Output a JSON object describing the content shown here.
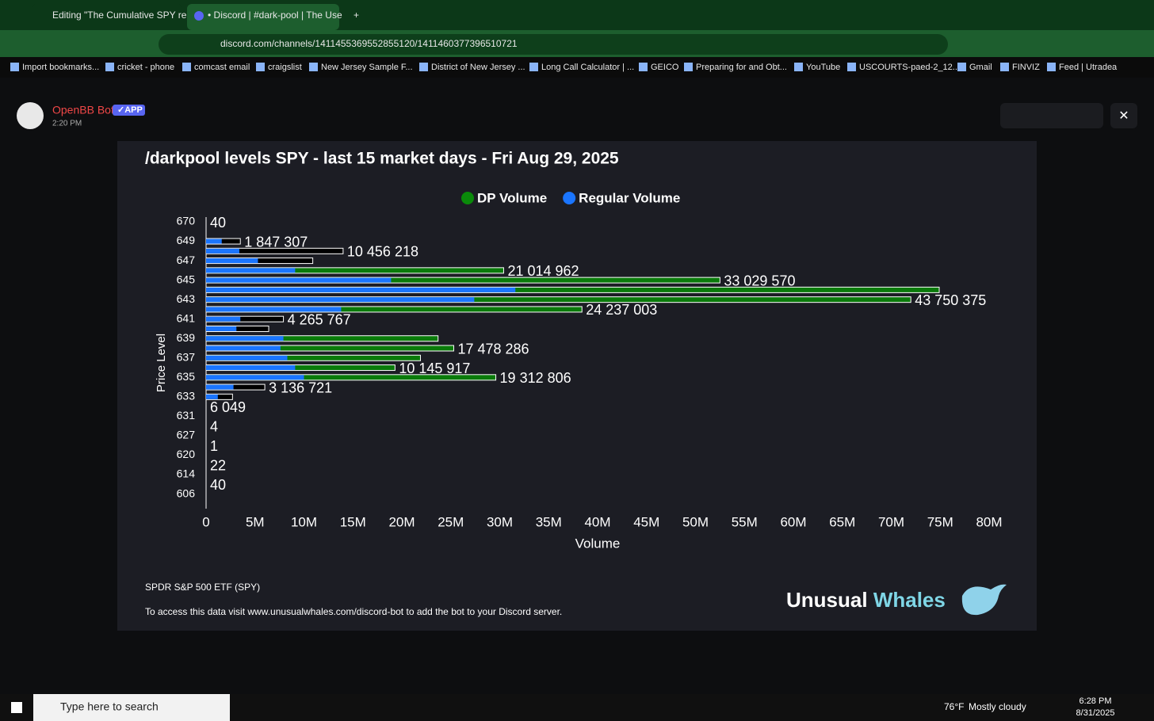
{
  "browser": {
    "tabs": [
      "Editing \"The Cumulative SPY re",
      "• Discord | #dark-pool | The Use"
    ],
    "url": "discord.com/channels/1411455369552855120/1411460377396510721",
    "bookmarks": [
      "Import bookmarks...",
      "cricket - phone",
      "comcast email",
      "craigslist",
      "New Jersey Sample F...",
      "District of New Jersey ...",
      "Long Call Calculator | ...",
      "GEICO",
      "Preparing for and Obt...",
      "YouTube",
      "USCOURTS-paed-2_12...",
      "Gmail",
      "FINVIZ",
      "Feed | Utradea"
    ]
  },
  "message": {
    "author": "OpenBB Bot",
    "badge": "APP",
    "time": "2:20 PM"
  },
  "chart_data": {
    "type": "bar",
    "orientation": "horizontal",
    "title": "/darkpool levels SPY - last 15 market days - Fri Aug 29, 2025",
    "x_label": "Volume",
    "y_label": "Price Level",
    "categories": [
      "670",
      null,
      "649",
      null,
      "647",
      null,
      "645",
      null,
      "643",
      null,
      "641",
      null,
      "639",
      null,
      "637",
      null,
      "635",
      null,
      "633",
      null,
      "631",
      null,
      "627",
      null,
      "620",
      null,
      "614",
      null,
      "606"
    ],
    "series": [
      {
        "name": "DP Volume",
        "color": "#0a8a0a",
        "colors": [
          null,
          null,
          "#000000",
          "#000000",
          "#000000",
          "#0a7a0a",
          "#0a7a0a",
          "#0a7a0a",
          "#0a7a0a",
          "#0a7a0a",
          "#000000",
          "#000000",
          "#0a7a0a",
          "#0a7a0a",
          "#0a7a0a",
          "#0a7a0a",
          "#0a7a0a",
          "#000000",
          "#000000",
          null,
          null,
          null,
          null,
          null,
          null,
          null,
          null,
          null,
          null
        ],
        "values": [
          null,
          null,
          3500000,
          14000000,
          10900000,
          30400000,
          52500000,
          74900000,
          72000000,
          38400000,
          7900000,
          6400000,
          23700000,
          25300000,
          21900000,
          19300000,
          29600000,
          6000000,
          2700000,
          null,
          null,
          null,
          null,
          null,
          null,
          null,
          null,
          null,
          null
        ]
      },
      {
        "name": "Regular Volume",
        "color": "#1a75ff",
        "values": [
          null,
          null,
          1600000,
          3400000,
          5300000,
          9100000,
          18900000,
          31600000,
          27400000,
          13800000,
          3500000,
          3100000,
          7900000,
          7600000,
          8300000,
          9100000,
          10000000,
          2800000,
          1200000,
          null,
          null,
          null,
          null,
          null,
          null,
          null,
          null,
          null,
          null
        ]
      }
    ],
    "annotations": [
      "40",
      null,
      "1 847 307",
      "10 456 218",
      null,
      "21 014 962",
      "33 029 570",
      null,
      "43 750 375",
      "24 237 003",
      "4 265 767",
      null,
      null,
      "17 478 286",
      null,
      "10 145 917",
      "19 312 806",
      "3 136 721",
      null,
      "6 049",
      null,
      "4",
      null,
      "1",
      null,
      "22",
      null,
      "40",
      null
    ],
    "xlim": [
      0,
      80000000
    ],
    "xticks": [
      0,
      {
        "value": 5000000,
        "label": "5M"
      },
      {
        "value": 10000000,
        "label": "10M"
      },
      {
        "value": 15000000,
        "label": "15M"
      },
      {
        "value": 20000000,
        "label": "20M"
      },
      {
        "value": 25000000,
        "label": "25M"
      },
      {
        "value": 30000000,
        "label": "30M"
      },
      {
        "value": 35000000,
        "label": "35M"
      },
      {
        "value": 40000000,
        "label": "40M"
      },
      {
        "value": 45000000,
        "label": "45M"
      },
      {
        "value": 50000000,
        "label": "50M"
      },
      {
        "value": 55000000,
        "label": "55M"
      },
      {
        "value": 60000000,
        "label": "60M"
      },
      {
        "value": 65000000,
        "label": "65M"
      },
      {
        "value": 70000000,
        "label": "70M"
      },
      {
        "value": 75000000,
        "label": "75M"
      },
      {
        "value": 80000000,
        "label": "80M"
      }
    ],
    "legend": "top"
  },
  "embed_footer": {
    "ticker": "SPDR S&P 500 ETF (SPY)",
    "note": "To access this data visit www.unusualwhales.com/discord-bot to add the bot to your Discord server.",
    "brand": [
      "Unusual",
      "Whales"
    ]
  },
  "taskbar": {
    "search": "Type here to search",
    "temperature": "76°F",
    "weather": "Mostly cloudy",
    "time": "6:28 PM",
    "date": "8/31/2025"
  }
}
